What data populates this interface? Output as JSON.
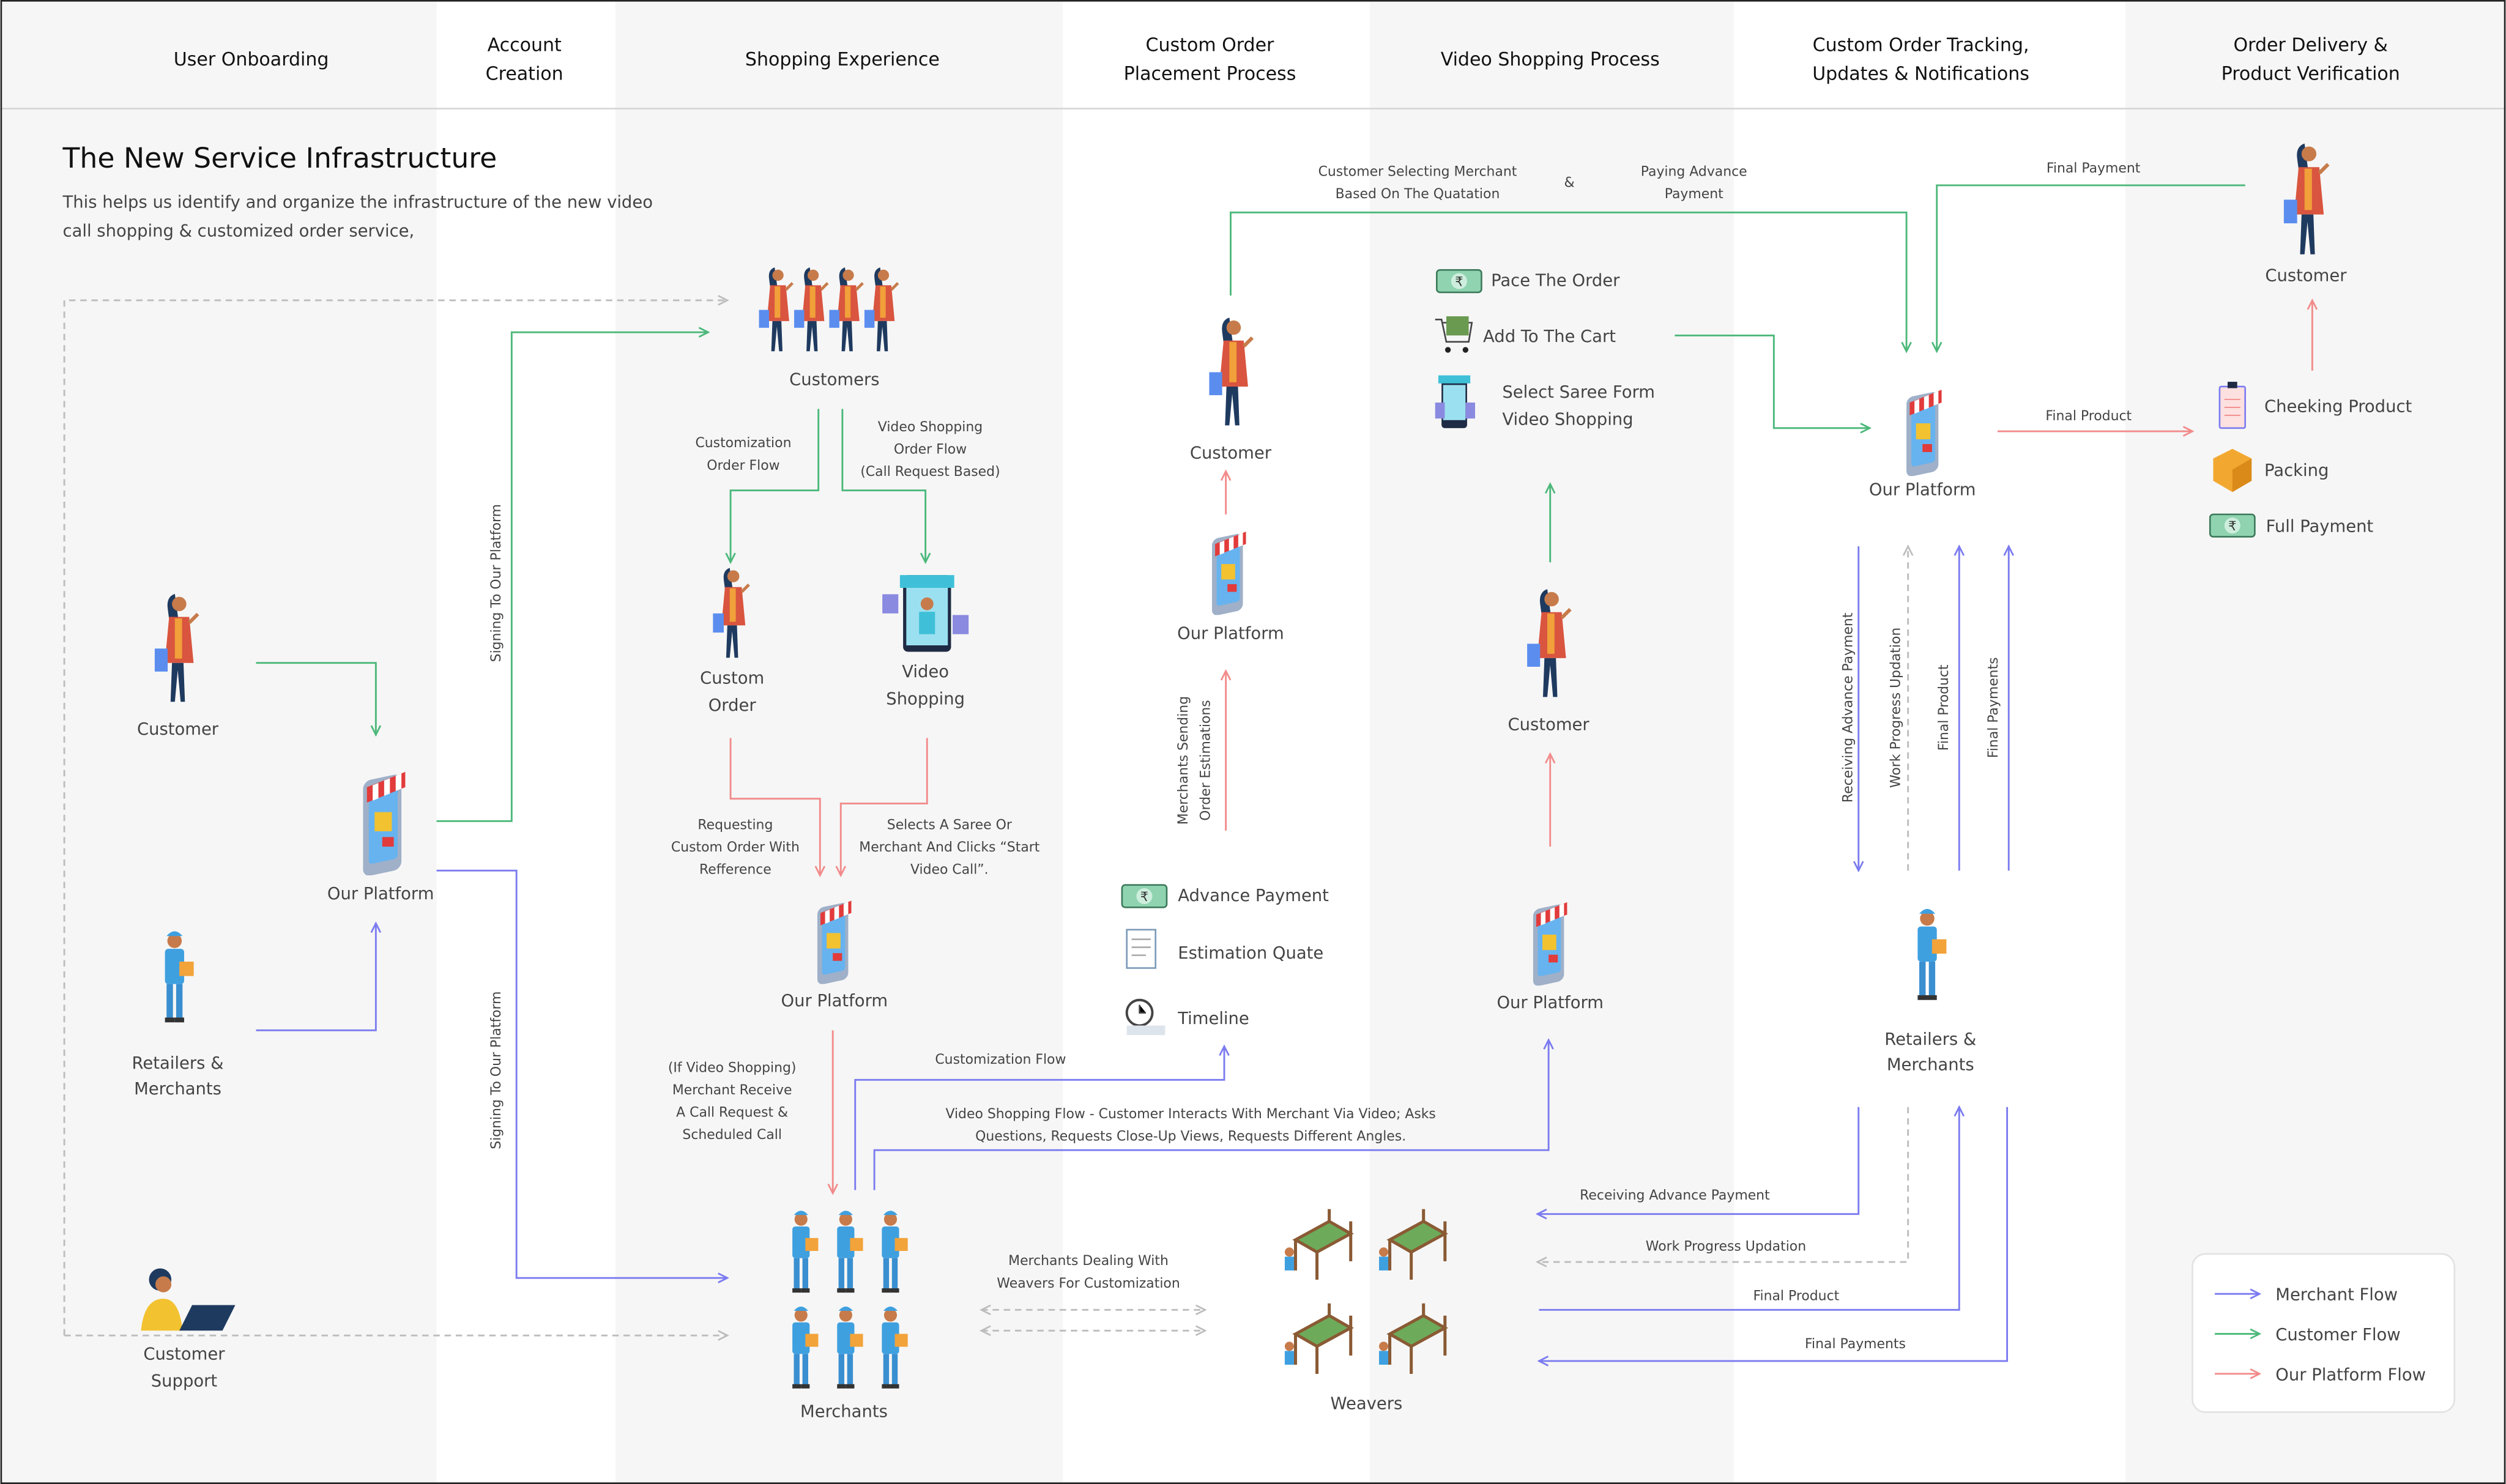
{
  "header": {
    "columns": [
      {
        "lines": [
          "User Onboarding"
        ]
      },
      {
        "lines": [
          "Account",
          "Creation"
        ]
      },
      {
        "lines": [
          "Shopping Experience"
        ]
      },
      {
        "lines": [
          "Custom Order",
          "Placement Process"
        ]
      },
      {
        "lines": [
          "Video Shopping Process"
        ]
      },
      {
        "lines": [
          "Custom Order Tracking,",
          "Updates & Notifications"
        ]
      },
      {
        "lines": [
          "Order Delivery &",
          "Product Verification"
        ]
      }
    ]
  },
  "intro": {
    "title": "The New Service Infrastructure",
    "subtitle": [
      "This helps us identify and organize the infrastructure of the new video",
      "call shopping & customized order service,"
    ]
  },
  "nodes": {
    "customer_left": [
      "Customer"
    ],
    "retailers_left": [
      "Retailers &",
      "Merchants"
    ],
    "support": [
      "Customer",
      "Support"
    ],
    "platform_1": [
      "Our Platform"
    ],
    "customers": [
      "Customers"
    ],
    "custom_order": [
      "Custom",
      "Order"
    ],
    "video_shopping": [
      "Video",
      "Shopping"
    ],
    "platform_2": [
      "Our Platform"
    ],
    "merchants": [
      "Merchants"
    ],
    "customer_col4": [
      "Customer"
    ],
    "platform_col4": [
      "Our Platform"
    ],
    "customer_col5": [
      "Customer"
    ],
    "platform_col5": [
      "Our Platform"
    ],
    "weavers": [
      "Weavers"
    ],
    "platform_col6": [
      "Our Platform"
    ],
    "retailers_col6": [
      "Retailers &",
      "Merchants"
    ],
    "customer_col7": [
      "Customer"
    ]
  },
  "lists": {
    "estimation": [
      {
        "label": "Advance Payment",
        "icon": "money-icon"
      },
      {
        "label": "Estimation Quate",
        "icon": "document-icon"
      },
      {
        "label": "Timeline",
        "icon": "clock-icon"
      }
    ],
    "video_steps": [
      {
        "label": [
          "Pace The Order"
        ],
        "icon": "money-icon"
      },
      {
        "label": [
          "Add To The Cart"
        ],
        "icon": "cart-icon"
      },
      {
        "label": [
          "Select Saree Form",
          "Video Shopping"
        ],
        "icon": "video-shop-icon"
      }
    ],
    "delivery": [
      {
        "label": "Cheeking Product",
        "icon": "clipboard-icon"
      },
      {
        "label": "Packing",
        "icon": "box-icon"
      },
      {
        "label": "Full Payment",
        "icon": "money-icon"
      }
    ]
  },
  "edges": {
    "signing_1": "Signing To Our Platform",
    "signing_2": "Signing To Our Platform",
    "customization_order_flow": [
      "Customization",
      "Order Flow"
    ],
    "video_order_flow": [
      "Video Shopping",
      "Order Flow",
      "(Call Request Based)"
    ],
    "requesting_custom": [
      "Requesting",
      "Custom Order With",
      "Refference"
    ],
    "selects_saree": [
      "Selects A Saree Or",
      "Merchant And Clicks “Start",
      "Video Call”."
    ],
    "call_request": [
      "(If Video Shopping)",
      "Merchant Receive",
      "A Call Request &",
      "Scheduled Call"
    ],
    "customization_flow": "Customization Flow",
    "video_flow": [
      "Video Shopping Flow - Customer Interacts With Merchant Via Video; Asks",
      "Questions, Requests Close-Up Views, Requests Different Angles."
    ],
    "weavers_dealing": [
      "Merchants Dealing  With",
      "Weavers For Customization"
    ],
    "estimations": [
      "Merchants Sending",
      "Order Estimations"
    ],
    "selecting_merchant": [
      "Customer Selecting Merchant",
      "Based On The Quatation"
    ],
    "ampersand": "&",
    "paying_advance": [
      "Paying Advance",
      "Payment"
    ],
    "final_payment_top": "Final Payment",
    "final_product_right": "Final Product",
    "v_receiving": "Receiving Advance Payment",
    "v_work": "Work Progress Updation",
    "v_final_product": "Final Product",
    "v_final_payments": "Final Payments",
    "h_receiving": "Receiving Advance Payment",
    "h_work": "Work Progress Updation",
    "h_final_product": "Final Product",
    "h_final_payments": "Final Payments"
  },
  "legend": {
    "items": [
      {
        "label": "Merchant Flow",
        "color": "#7b7bf0"
      },
      {
        "label": "Customer Flow",
        "color": "#4cb87a"
      },
      {
        "label": "Our Platform Flow",
        "color": "#f28b8b"
      }
    ]
  },
  "colors": {
    "merchant": "#7b7bf0",
    "customer": "#4cb87a",
    "platform": "#f28b8b",
    "column_shade": "#f6f6f6"
  }
}
